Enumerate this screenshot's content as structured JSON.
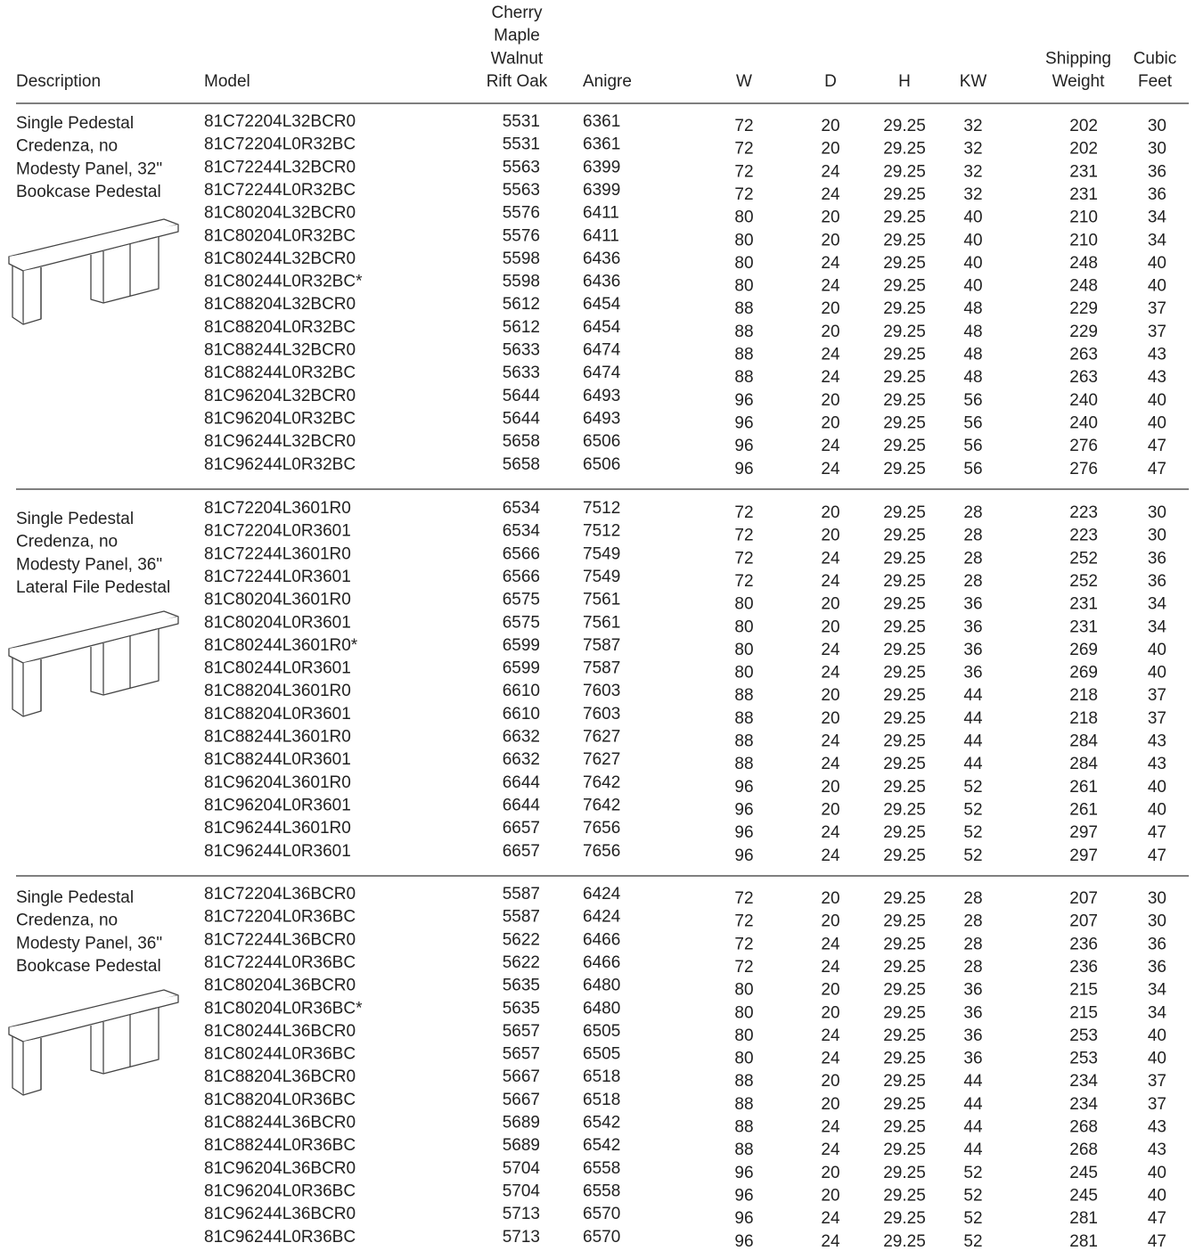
{
  "header": [
    "Description",
    "Model",
    [
      "Cherry",
      "Maple",
      "Walnut",
      "Rift Oak"
    ],
    "Anigre",
    "W",
    "D",
    "H",
    "KW",
    [
      "Shipping",
      "Weight"
    ],
    [
      "Cubic",
      "Feet"
    ]
  ],
  "sections": [
    {
      "description": [
        "Single Pedestal",
        "Credenza, no",
        "Modesty Panel, 32\"",
        "Bookcase Pedestal"
      ],
      "rows": [
        [
          "81C72204L32BCR0",
          5531,
          6361,
          72,
          20,
          29.25,
          32,
          202,
          30
        ],
        [
          "81C72204L0R32BC",
          5531,
          6361,
          72,
          20,
          29.25,
          32,
          202,
          30
        ],
        [
          "81C72244L32BCR0",
          5563,
          6399,
          72,
          24,
          29.25,
          32,
          231,
          36
        ],
        [
          "81C72244L0R32BC",
          5563,
          6399,
          72,
          24,
          29.25,
          32,
          231,
          36
        ],
        [
          "81C80204L32BCR0",
          5576,
          6411,
          80,
          20,
          29.25,
          40,
          210,
          34
        ],
        [
          "81C80204L0R32BC",
          5576,
          6411,
          80,
          20,
          29.25,
          40,
          210,
          34
        ],
        [
          "81C80244L32BCR0",
          5598,
          6436,
          80,
          24,
          29.25,
          40,
          248,
          40
        ],
        [
          "81C80244L0R32BC*",
          5598,
          6436,
          80,
          24,
          29.25,
          40,
          248,
          40
        ],
        [
          "81C88204L32BCR0",
          5612,
          6454,
          88,
          20,
          29.25,
          48,
          229,
          37
        ],
        [
          "81C88204L0R32BC",
          5612,
          6454,
          88,
          20,
          29.25,
          48,
          229,
          37
        ],
        [
          "81C88244L32BCR0",
          5633,
          6474,
          88,
          24,
          29.25,
          48,
          263,
          43
        ],
        [
          "81C88244L0R32BC",
          5633,
          6474,
          88,
          24,
          29.25,
          48,
          263,
          43
        ],
        [
          "81C96204L32BCR0",
          5644,
          6493,
          96,
          20,
          29.25,
          56,
          240,
          40
        ],
        [
          "81C96204L0R32BC",
          5644,
          6493,
          96,
          20,
          29.25,
          56,
          240,
          40
        ],
        [
          "81C96244L32BCR0",
          5658,
          6506,
          96,
          24,
          29.25,
          56,
          276,
          47
        ],
        [
          "81C96244L0R32BC",
          5658,
          6506,
          96,
          24,
          29.25,
          56,
          276,
          47
        ]
      ]
    },
    {
      "description": [
        "Single Pedestal",
        "Credenza, no",
        "Modesty Panel, 36\"",
        "Lateral File Pedestal"
      ],
      "rows": [
        [
          "81C72204L3601R0",
          6534,
          7512,
          72,
          20,
          29.25,
          28,
          223,
          30
        ],
        [
          "81C72204L0R3601",
          6534,
          7512,
          72,
          20,
          29.25,
          28,
          223,
          30
        ],
        [
          "81C72244L3601R0",
          6566,
          7549,
          72,
          24,
          29.25,
          28,
          252,
          36
        ],
        [
          "81C72244L0R3601",
          6566,
          7549,
          72,
          24,
          29.25,
          28,
          252,
          36
        ],
        [
          "81C80204L3601R0",
          6575,
          7561,
          80,
          20,
          29.25,
          36,
          231,
          34
        ],
        [
          "81C80204L0R3601",
          6575,
          7561,
          80,
          20,
          29.25,
          36,
          231,
          34
        ],
        [
          "81C80244L3601R0*",
          6599,
          7587,
          80,
          24,
          29.25,
          36,
          269,
          40
        ],
        [
          "81C80244L0R3601",
          6599,
          7587,
          80,
          24,
          29.25,
          36,
          269,
          40
        ],
        [
          "81C88204L3601R0",
          6610,
          7603,
          88,
          20,
          29.25,
          44,
          218,
          37
        ],
        [
          "81C88204L0R3601",
          6610,
          7603,
          88,
          20,
          29.25,
          44,
          218,
          37
        ],
        [
          "81C88244L3601R0",
          6632,
          7627,
          88,
          24,
          29.25,
          44,
          284,
          43
        ],
        [
          "81C88244L0R3601",
          6632,
          7627,
          88,
          24,
          29.25,
          44,
          284,
          43
        ],
        [
          "81C96204L3601R0",
          6644,
          7642,
          96,
          20,
          29.25,
          52,
          261,
          40
        ],
        [
          "81C96204L0R3601",
          6644,
          7642,
          96,
          20,
          29.25,
          52,
          261,
          40
        ],
        [
          "81C96244L3601R0",
          6657,
          7656,
          96,
          24,
          29.25,
          52,
          297,
          47
        ],
        [
          "81C96244L0R3601",
          6657,
          7656,
          96,
          24,
          29.25,
          52,
          297,
          47
        ]
      ]
    },
    {
      "description": [
        "Single Pedestal",
        "Credenza, no",
        "Modesty Panel, 36\"",
        "Bookcase Pedestal"
      ],
      "rows": [
        [
          "81C72204L36BCR0",
          5587,
          6424,
          72,
          20,
          29.25,
          28,
          207,
          30
        ],
        [
          "81C72204L0R36BC",
          5587,
          6424,
          72,
          20,
          29.25,
          28,
          207,
          30
        ],
        [
          "81C72244L36BCR0",
          5622,
          6466,
          72,
          24,
          29.25,
          28,
          236,
          36
        ],
        [
          "81C72244L0R36BC",
          5622,
          6466,
          72,
          24,
          29.25,
          28,
          236,
          36
        ],
        [
          "81C80204L36BCR0",
          5635,
          6480,
          80,
          20,
          29.25,
          36,
          215,
          34
        ],
        [
          "81C80204L0R36BC*",
          5635,
          6480,
          80,
          20,
          29.25,
          36,
          215,
          34
        ],
        [
          "81C80244L36BCR0",
          5657,
          6505,
          80,
          24,
          29.25,
          36,
          253,
          40
        ],
        [
          "81C80244L0R36BC",
          5657,
          6505,
          80,
          24,
          29.25,
          36,
          253,
          40
        ],
        [
          "81C88204L36BCR0",
          5667,
          6518,
          88,
          20,
          29.25,
          44,
          234,
          37
        ],
        [
          "81C88204L0R36BC",
          5667,
          6518,
          88,
          20,
          29.25,
          44,
          234,
          37
        ],
        [
          "81C88244L36BCR0",
          5689,
          6542,
          88,
          24,
          29.25,
          44,
          268,
          43
        ],
        [
          "81C88244L0R36BC",
          5689,
          6542,
          88,
          24,
          29.25,
          44,
          268,
          43
        ],
        [
          "81C96204L36BCR0",
          5704,
          6558,
          96,
          20,
          29.25,
          52,
          245,
          40
        ],
        [
          "81C96204L0R36BC",
          5704,
          6558,
          96,
          20,
          29.25,
          52,
          245,
          40
        ],
        [
          "81C96244L36BCR0",
          5713,
          6570,
          96,
          24,
          29.25,
          52,
          281,
          47
        ],
        [
          "81C96244L0R36BC",
          5713,
          6570,
          96,
          24,
          29.25,
          52,
          281,
          47
        ]
      ]
    }
  ]
}
